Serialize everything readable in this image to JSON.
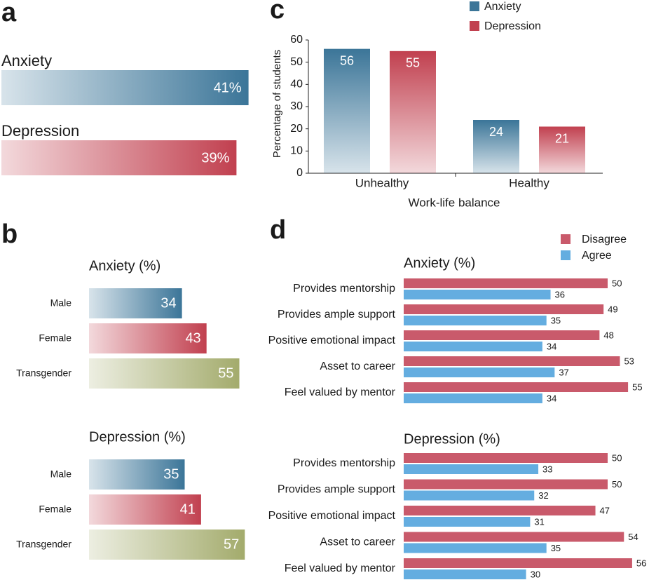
{
  "chart_data": [
    {
      "type": "hbar-gradient",
      "panel": "a",
      "categories": [
        "Anxiety",
        "Depression"
      ],
      "values": [
        41,
        39
      ],
      "value_labels": [
        "41%",
        "39%"
      ],
      "colors": [
        "#3b7598",
        "#c1404f"
      ]
    },
    {
      "type": "hbar-gradient-groups",
      "panel": "b",
      "colors": [
        "#3b7598",
        "#c1404f",
        "#a3ab6c"
      ],
      "groups": [
        {
          "title": "Anxiety (%)",
          "categories": [
            "Male",
            "Female",
            "Transgender"
          ],
          "values": [
            34,
            43,
            55
          ]
        },
        {
          "title": "Depression (%)",
          "categories": [
            "Male",
            "Female",
            "Transgender"
          ],
          "values": [
            35,
            41,
            57
          ]
        }
      ]
    },
    {
      "type": "bar",
      "panel": "c",
      "categories": [
        "Unhealthy",
        "Healthy"
      ],
      "series": [
        {
          "name": "Anxiety",
          "color": "#3b7598",
          "values": [
            56,
            24
          ]
        },
        {
          "name": "Depression",
          "color": "#c1404f",
          "values": [
            55,
            21
          ]
        }
      ],
      "ylim": [
        0,
        60
      ],
      "yticks": [
        0,
        10,
        20,
        30,
        40,
        50,
        60
      ],
      "ylabel": "Percentage of students",
      "xlabel": "Work-life balance"
    },
    {
      "type": "hbar-groups",
      "panel": "d",
      "series": [
        {
          "name": "Disagree",
          "color": "#c95a6b"
        },
        {
          "name": "Agree",
          "color": "#64ade0"
        }
      ],
      "groups": [
        {
          "title": "Anxiety (%)",
          "categories": [
            "Provides mentorship",
            "Provides ample support",
            "Positive emotional impact",
            "Asset to career",
            "Feel valued by mentor"
          ],
          "values": [
            [
              50,
              49,
              48,
              53,
              55
            ],
            [
              36,
              35,
              34,
              37,
              34
            ]
          ]
        },
        {
          "title": "Depression (%)",
          "categories": [
            "Provides mentorship",
            "Provides ample support",
            "Positive emotional impact",
            "Asset to career",
            "Feel valued by mentor"
          ],
          "values": [
            [
              50,
              50,
              47,
              54,
              56
            ],
            [
              33,
              32,
              31,
              35,
              30
            ]
          ]
        }
      ]
    }
  ]
}
